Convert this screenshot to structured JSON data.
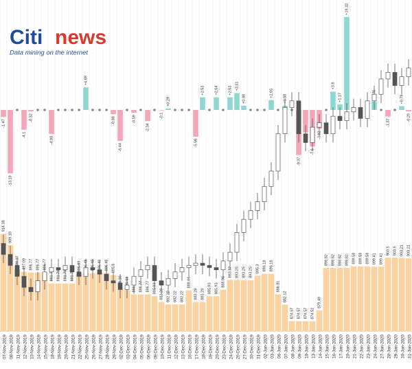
{
  "logo": {
    "brand_a": "Citi",
    "brand_b": "news",
    "tagline": "Data mining on the internet"
  },
  "chart_data": {
    "type": "combo",
    "categories": [
      "07-Nov-2019",
      "08-Nov-2019",
      "11-Nov-2019",
      "12-Nov-2019",
      "13-Nov-2019",
      "14-Nov-2019",
      "15-Nov-2019",
      "18-Nov-2019",
      "19-Nov-2019",
      "20-Nov-2019",
      "21-Nov-2019",
      "22-Nov-2019",
      "25-Nov-2019",
      "26-Nov-2019",
      "27-Nov-2019",
      "28-Nov-2019",
      "29-Nov-2019",
      "02-Dec-2019",
      "03-Dec-2019",
      "04-Dec-2019",
      "05-Dec-2019",
      "06-Dec-2019",
      "09-Dec-2019",
      "10-Dec-2019",
      "11-Dec-2019",
      "12-Dec-2019",
      "13-Dec-2019",
      "16-Dec-2019",
      "17-Dec-2019",
      "18-Dec-2019",
      "19-Dec-2019",
      "20-Dec-2019",
      "23-Dec-2019",
      "24-Dec-2019",
      "26-Dec-2019",
      "27-Dec-2019",
      "30-Dec-2019",
      "31-Dec-2019",
      "02-Jan-2020",
      "03-Jan-2020",
      "06-Jan-2020",
      "07-Jan-2020",
      "08-Jan-2020",
      "09-Jan-2020",
      "10-Jan-2020",
      "13-Jan-2020",
      "14-Jan-2020",
      "15-Jan-2020",
      "16-Jan-2020",
      "17-Jan-2020",
      "20-Jan-2020",
      "21-Jan-2020",
      "22-Jan-2020",
      "23-Jan-2020",
      "24-Jan-2020",
      "27-Jan-2020",
      "28-Jan-2020",
      "29-Jan-2020",
      "30-Jan-2020",
      "31-Jan-2020"
    ],
    "changes": {
      "ylim": [
        -15,
        20
      ],
      "up_color": "#8fd8d2",
      "down_color": "#f4a7bb",
      "zero_color": "#888888",
      "values": [
        -1.47,
        -13.19,
        0,
        -4.1,
        -0.32,
        0,
        0,
        -4.98,
        0,
        0,
        0,
        0,
        4.69,
        0,
        0,
        0,
        -0.88,
        -6.44,
        0,
        -0.59,
        0,
        -2.34,
        0,
        -0.1,
        0.29,
        0,
        0,
        0,
        -5.56,
        2.63,
        0,
        2.64,
        0,
        2.63,
        3.51,
        0.88,
        0,
        0,
        0,
        2.05,
        0,
        0.88,
        0,
        -9.37,
        -4.69,
        -7.6,
        -3.92,
        0,
        3.8,
        1.17,
        19.32,
        0,
        0,
        0,
        1.76,
        0,
        -1.37,
        0,
        0.79,
        -0.29
      ],
      "value_labels": [
        "-1.47",
        "-13.19",
        null,
        "-4.1",
        "-0.32",
        null,
        null,
        "-4.98",
        null,
        null,
        null,
        null,
        "+4.69",
        null,
        null,
        null,
        "-0.88",
        "-6.44",
        null,
        "-0.59",
        null,
        "-2.34",
        null,
        "-0.1",
        "+0.29",
        null,
        null,
        null,
        "-5.56",
        "+2.63",
        null,
        "+2.64",
        null,
        "+2.63",
        "+3.51",
        "+0.88",
        null,
        null,
        null,
        "+2.05",
        null,
        "+0.88",
        null,
        "-9.37",
        "-4.69",
        "-7.6",
        "-3.92",
        null,
        "+3.8",
        "+1.17",
        "+19.32",
        null,
        null,
        null,
        "+1.76",
        null,
        "-1.37",
        null,
        "+0.79",
        "-0.29"
      ]
    },
    "bars": {
      "ylim": [
        870,
        1000
      ],
      "color": "#fbd2a0",
      "values": [
        914.38,
        909.19,
        898.17,
        897.09,
        896.77,
        896.77,
        896.77,
        891.79,
        891.79,
        891.79,
        891.79,
        895.89,
        896.48,
        896.48,
        896.48,
        896.48,
        895.6,
        889.16,
        888.68,
        886.77,
        886.77,
        886.77,
        885.93,
        883.29,
        882.22,
        882.22,
        882.22,
        888.66,
        883.29,
        883.29,
        885.93,
        885.93,
        888.86,
        893.37,
        893.25,
        893.25,
        893.25,
        895.3,
        896.18,
        896.18,
        886.81,
        882.12,
        874.57,
        874.57,
        874.57,
        874.52,
        879.49,
        898.82,
        898.82,
        898.82,
        898.82,
        899.58,
        899.58,
        899.58,
        899.41,
        899.41,
        903.5,
        903.5,
        903.21,
        903.21
      ]
    },
    "candles": {
      "ylim": [
        870,
        1000
      ],
      "up_color": "#ffffff",
      "down_color": "#555555",
      "open": [
        910,
        905,
        900,
        895,
        890,
        888,
        893,
        897,
        899,
        898,
        900,
        897,
        895,
        899,
        898,
        896,
        893,
        892,
        889,
        891,
        895,
        898,
        900,
        893,
        891,
        894,
        897,
        899,
        900,
        901,
        900,
        899,
        898,
        902,
        906,
        915,
        921,
        925,
        929,
        936,
        943,
        960,
        972,
        975,
        960,
        956,
        963,
        965,
        960,
        968,
        966,
        970,
        972,
        967,
        975,
        978,
        985,
        988,
        982,
        986
      ],
      "high": [
        914,
        909,
        904,
        899,
        894,
        897,
        901,
        903,
        903,
        904,
        904,
        901,
        903,
        903,
        902,
        900,
        897,
        896,
        895,
        899,
        902,
        904,
        904,
        897,
        898,
        901,
        903,
        904,
        905,
        905,
        904,
        903,
        906,
        910,
        919,
        925,
        929,
        933,
        940,
        947,
        964,
        976,
        979,
        979,
        964,
        967,
        969,
        969,
        972,
        972,
        974,
        976,
        976,
        979,
        982,
        989,
        992,
        992,
        990,
        994
      ],
      "low": [
        901,
        896,
        891,
        886,
        884,
        884,
        889,
        893,
        894,
        894,
        893,
        891,
        891,
        894,
        892,
        889,
        888,
        885,
        885,
        887,
        891,
        894,
        889,
        887,
        887,
        890,
        893,
        895,
        896,
        896,
        895,
        894,
        894,
        898,
        902,
        911,
        917,
        921,
        925,
        932,
        939,
        956,
        968,
        956,
        952,
        952,
        959,
        956,
        956,
        962,
        962,
        966,
        963,
        963,
        971,
        974,
        981,
        978,
        978,
        982
      ],
      "close": [
        905,
        900,
        895,
        890,
        888,
        893,
        897,
        899,
        898,
        900,
        897,
        895,
        899,
        898,
        896,
        893,
        892,
        889,
        891,
        895,
        898,
        900,
        893,
        891,
        894,
        897,
        899,
        900,
        901,
        900,
        899,
        898,
        902,
        906,
        915,
        921,
        925,
        929,
        936,
        943,
        960,
        972,
        975,
        960,
        956,
        963,
        965,
        960,
        968,
        966,
        970,
        972,
        967,
        975,
        978,
        985,
        988,
        982,
        986,
        990
      ]
    }
  }
}
